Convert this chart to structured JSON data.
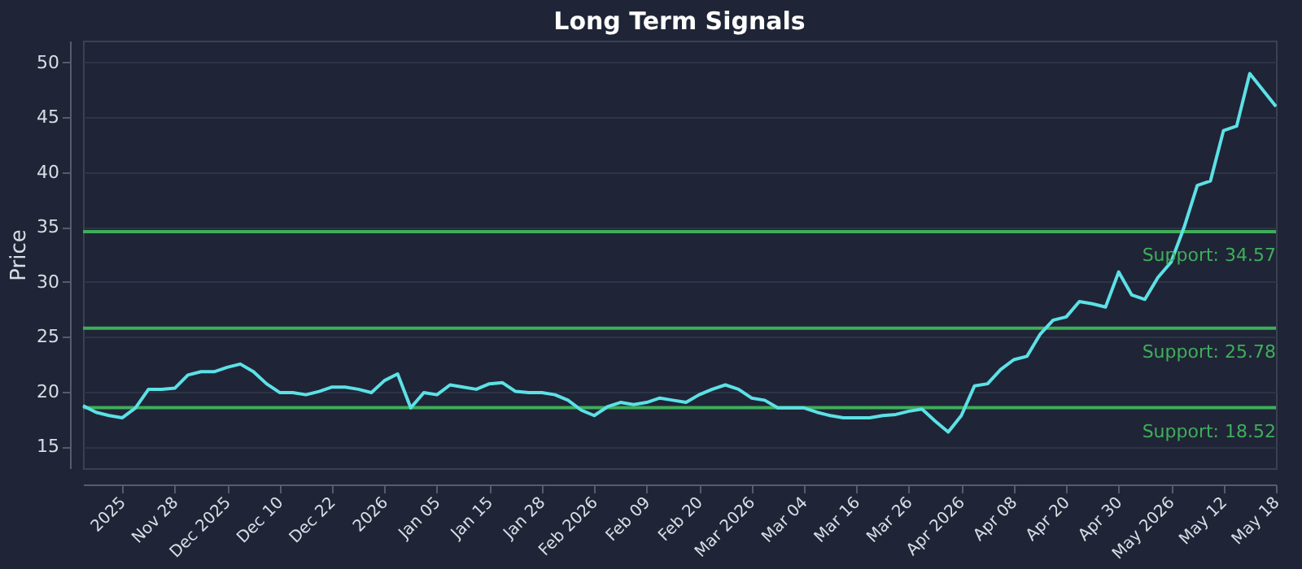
{
  "chart_data": {
    "type": "line",
    "title": "Long Term Signals",
    "ylabel": "Price",
    "categories": [
      null,
      null,
      null,
      "2025",
      null,
      null,
      null,
      "Nov 28",
      null,
      null,
      null,
      "Dec 2025",
      null,
      null,
      null,
      "Dec 10",
      null,
      null,
      null,
      "Dec 22",
      null,
      null,
      null,
      "2026",
      null,
      null,
      null,
      "Jan 05",
      null,
      null,
      null,
      "Jan 15",
      null,
      null,
      null,
      "Jan 28",
      null,
      null,
      null,
      "Feb 2026",
      null,
      null,
      null,
      "Feb 09",
      null,
      null,
      null,
      "Feb 20",
      null,
      null,
      null,
      "Mar 2026",
      null,
      null,
      null,
      "Mar 04",
      null,
      null,
      null,
      "Mar 16",
      null,
      null,
      null,
      "Mar 26",
      null,
      null,
      null,
      "Apr 2026",
      null,
      null,
      null,
      "Apr 08",
      null,
      null,
      null,
      "Apr 20",
      null,
      null,
      null,
      "Apr 30",
      null,
      null,
      null,
      "May 2026",
      null,
      null,
      null,
      "May 12",
      null,
      null,
      null,
      "May 18"
    ],
    "series": [
      {
        "color": "#5ce1e6",
        "values": [
          18.7,
          18.1,
          17.8,
          17.6,
          18.5,
          20.2,
          20.2,
          20.3,
          21.5,
          21.8,
          21.8,
          22.2,
          22.5,
          21.8,
          20.7,
          19.9,
          19.9,
          19.7,
          20.0,
          20.4,
          20.4,
          20.2,
          19.9,
          21.0,
          21.6,
          18.5,
          19.9,
          19.7,
          20.6,
          20.4,
          20.2,
          20.7,
          20.8,
          20.0,
          19.9,
          19.9,
          19.7,
          19.2,
          18.3,
          17.8,
          18.6,
          19.0,
          18.8,
          19.0,
          19.4,
          19.2,
          19.0,
          19.7,
          20.2,
          20.6,
          20.2,
          19.4,
          19.2,
          18.5,
          18.5,
          18.5,
          18.1,
          17.8,
          17.6,
          17.6,
          17.6,
          17.8,
          17.9,
          18.2,
          18.4,
          17.3,
          16.3,
          17.8,
          20.5,
          20.7,
          22.0,
          22.9,
          23.2,
          25.2,
          26.5,
          26.8,
          28.2,
          28.0,
          27.7,
          30.9,
          28.8,
          28.4,
          30.4,
          31.8,
          35.0,
          38.8,
          39.2,
          43.8,
          44.2,
          49.0,
          47.5,
          46.0
        ]
      }
    ],
    "ylim": [
      13,
      52
    ],
    "yticks": [
      15,
      20,
      25,
      30,
      35,
      40,
      45,
      50
    ],
    "grid": "y",
    "marker": "none",
    "line_style": "solid",
    "ref_lines": [
      {
        "axis": "y",
        "value": 34.57,
        "label": "Support: 34.57",
        "color": "#3fae5a"
      },
      {
        "axis": "y",
        "value": 25.78,
        "label": "Support: 25.78",
        "color": "#3fae5a"
      },
      {
        "axis": "y",
        "value": 18.52,
        "label": "Support: 18.52",
        "color": "#3fae5a"
      }
    ]
  }
}
